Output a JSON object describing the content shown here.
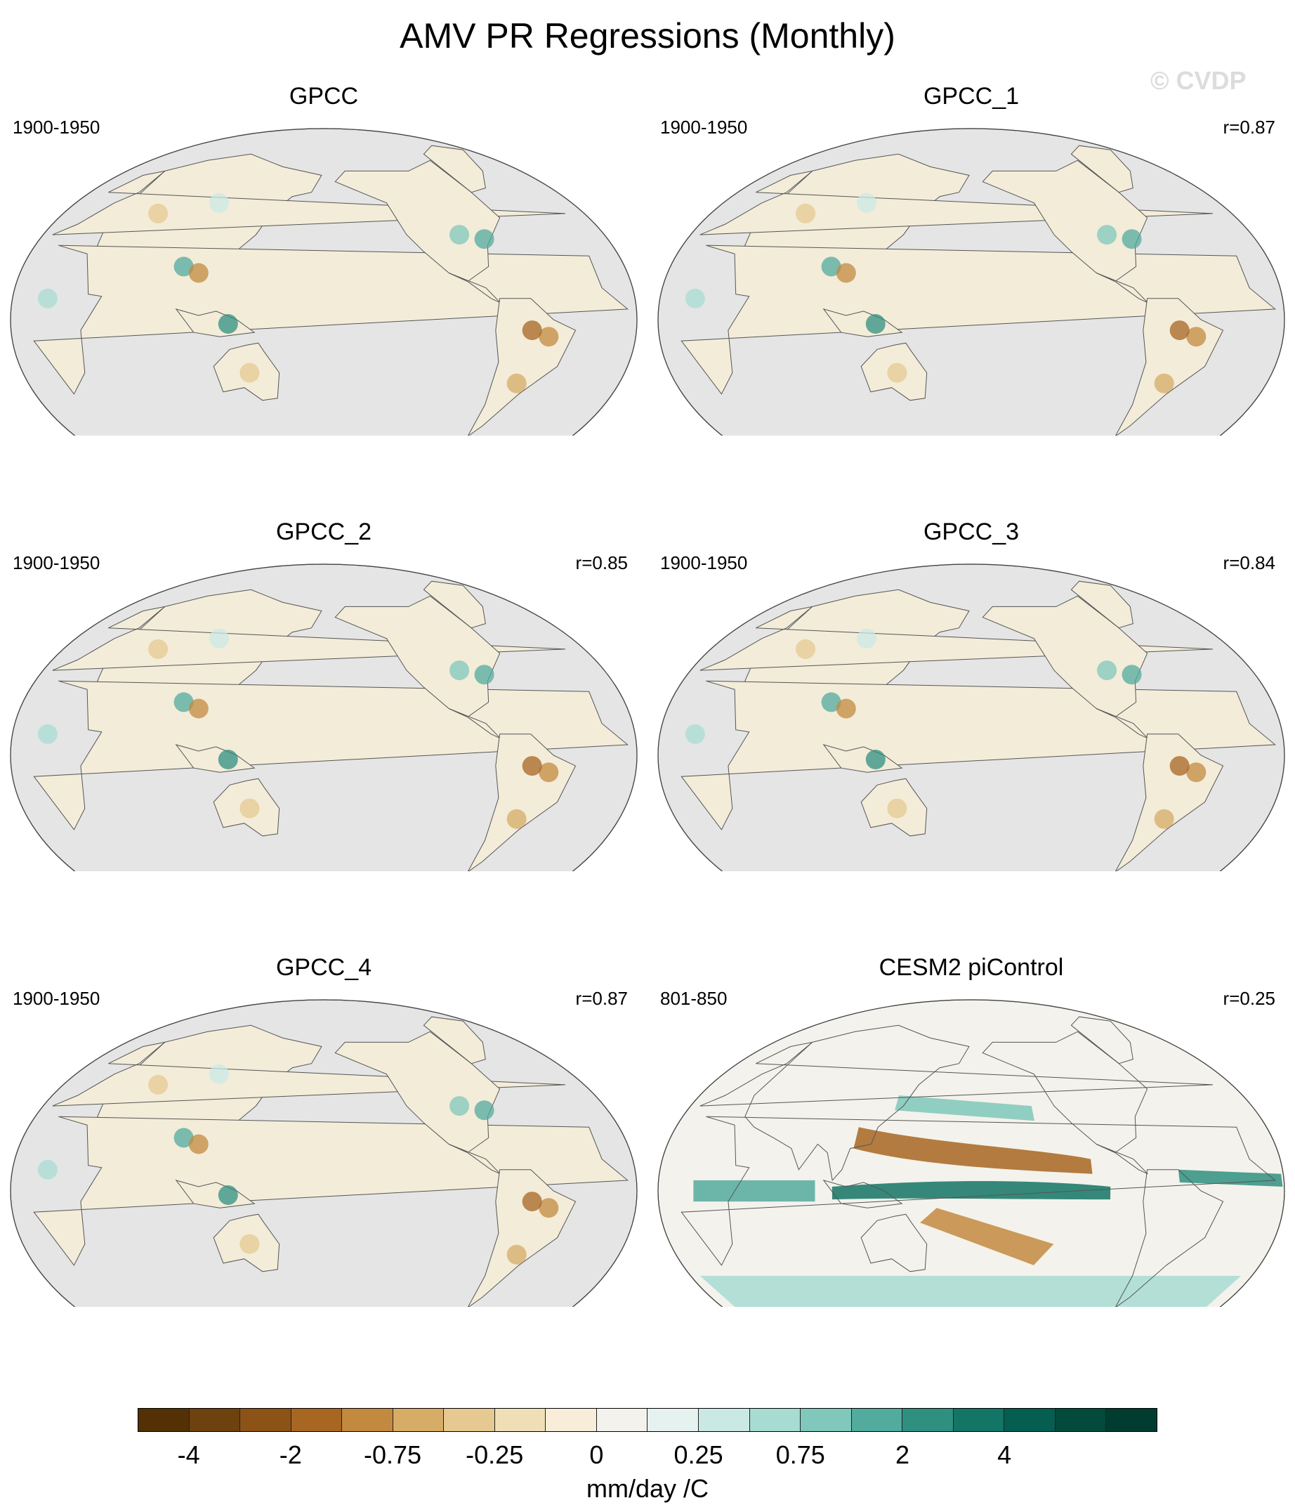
{
  "title": "AMV PR Regressions (Monthly)",
  "watermark": "© CVDP",
  "panels": [
    {
      "title": "GPCC",
      "period": "1900-1950",
      "corr": ""
    },
    {
      "title": "GPCC_1",
      "period": "1900-1950",
      "corr": "r=0.87"
    },
    {
      "title": "GPCC_2",
      "period": "1900-1950",
      "corr": "r=0.85"
    },
    {
      "title": "GPCC_3",
      "period": "1900-1950",
      "corr": "r=0.84"
    },
    {
      "title": "GPCC_4",
      "period": "1900-1950",
      "corr": "r=0.87"
    },
    {
      "title": "CESM2 piControl",
      "period": "801-850",
      "corr": "r=0.25"
    }
  ],
  "colorbar": {
    "colors": [
      "#543005",
      "#6e420e",
      "#8c5216",
      "#a76622",
      "#c38a3f",
      "#d6ac66",
      "#e6c990",
      "#f0dfb6",
      "#f7edd8",
      "#f4f2ec",
      "#e6f2f0",
      "#cbe9e4",
      "#a7dcd3",
      "#7fc8bb",
      "#53ab9e",
      "#2f9080",
      "#137565",
      "#055e50",
      "#014a3c",
      "#003c30"
    ],
    "tick_labels": [
      "-4",
      "-2",
      "-0.75",
      "-0.25",
      "0",
      "0.25",
      "0.75",
      "2",
      "4"
    ],
    "unit": "mm/day /C"
  }
}
